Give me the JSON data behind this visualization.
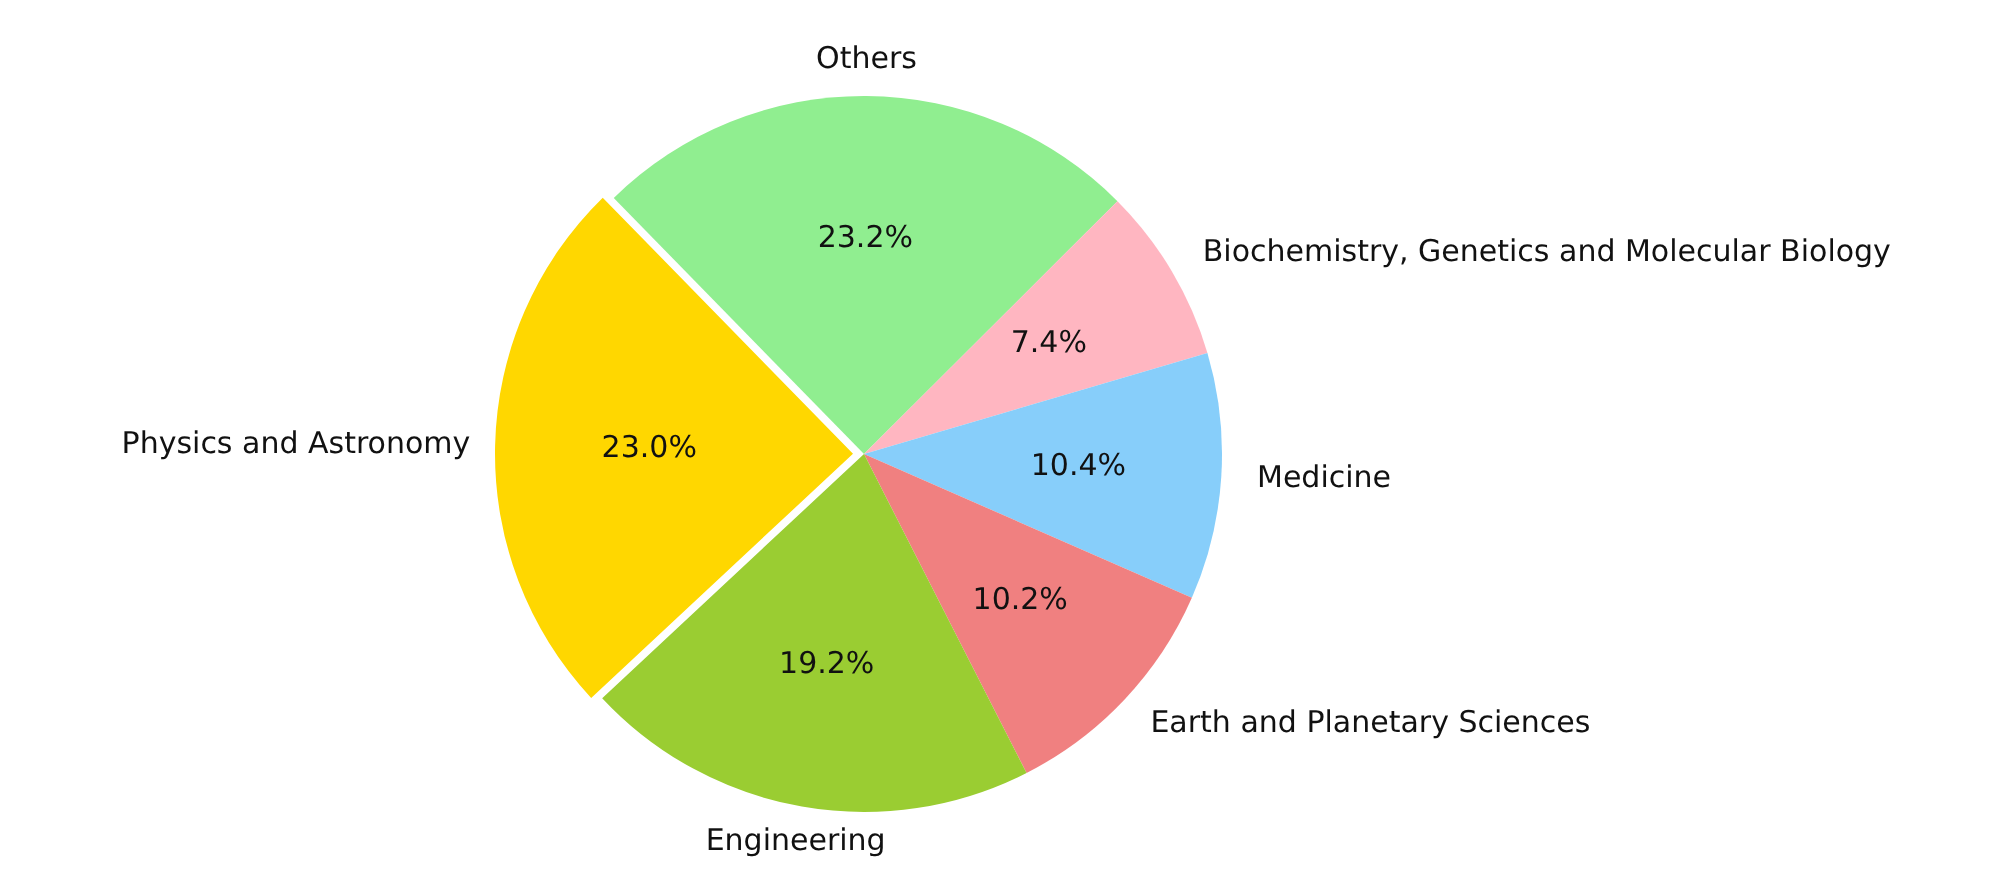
{
  "chart_data": {
    "type": "pie",
    "categories": [
      "Physics and Astronomy",
      "Others",
      "Biochemistry, Genetics and Molecular Biology",
      "Medicine",
      "Earth and Planetary Sciences",
      "Engineering"
    ],
    "values": [
      23.0,
      23.2,
      7.4,
      10.4,
      10.2,
      19.2
    ],
    "value_labels": [
      "23.0%",
      "23.2%",
      "7.4%",
      "10.4%",
      "10.2%",
      "19.2%"
    ],
    "colors": [
      "#ffd700",
      "#90ee90",
      "#ffb6c1",
      "#87cefa",
      "#f08080",
      "#9acd32"
    ],
    "legend": false
  }
}
